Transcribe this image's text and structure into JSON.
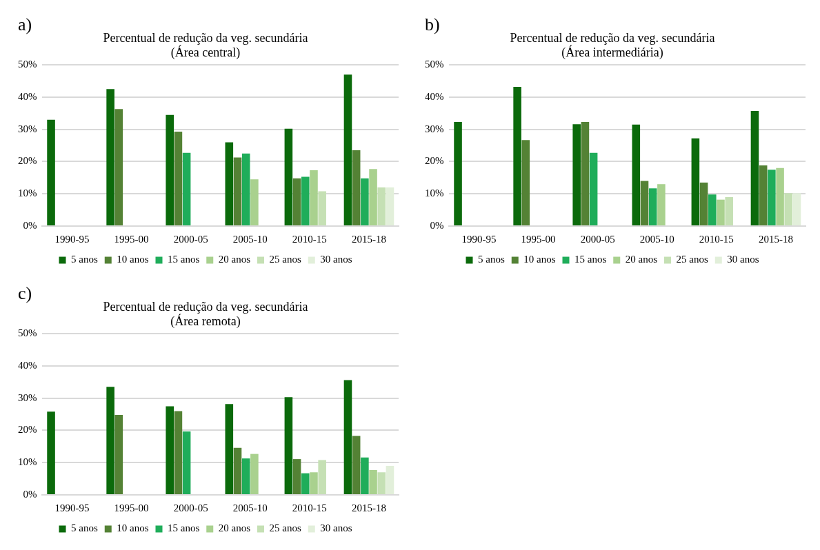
{
  "chart_data": [
    {
      "type": "bar",
      "title": "Percentual de redução da veg. secundária",
      "subtitle": "(Área central)",
      "annotations": [
        "a)"
      ],
      "categories": [
        "1990-95",
        "1995-00",
        "2000-05",
        "2005-10",
        "2010-15",
        "2015-18"
      ],
      "ylim": [
        0,
        50
      ],
      "yticks": [
        {
          "value": 0,
          "label": "0%"
        },
        {
          "value": 10,
          "label": "10%"
        },
        {
          "value": 20,
          "label": "20%"
        },
        {
          "value": 30,
          "label": "30%"
        },
        {
          "value": 40,
          "label": "40%"
        },
        {
          "value": 50,
          "label": "50%"
        }
      ],
      "grid": "y",
      "legend": "bottom",
      "series": [
        {
          "name": "5 anos",
          "color": "#0b6a0b",
          "values": [
            33,
            42.5,
            34.5,
            26,
            30.2,
            47
          ]
        },
        {
          "name": "10 anos",
          "color": "#548235",
          "values": [
            null,
            36.3,
            29.3,
            21.3,
            14.8,
            23.5
          ]
        },
        {
          "name": "15 anos",
          "color": "#1fad5a",
          "values": [
            null,
            null,
            22.7,
            22.5,
            15.3,
            14.8
          ]
        },
        {
          "name": "20 anos",
          "color": "#a9d18e",
          "values": [
            null,
            null,
            null,
            14.5,
            17.3,
            17.7
          ]
        },
        {
          "name": "25 anos",
          "color": "#c5e0b4",
          "values": [
            null,
            null,
            null,
            null,
            10.8,
            12
          ]
        },
        {
          "name": "30 anos",
          "color": "#e2efda",
          "values": [
            null,
            null,
            null,
            null,
            null,
            12
          ]
        }
      ]
    },
    {
      "type": "bar",
      "title": "Percentual de redução da veg. secundária",
      "subtitle": "(Área intermediária)",
      "annotations": [
        "b)"
      ],
      "categories": [
        "1990-95",
        "1995-00",
        "2000-05",
        "2005-10",
        "2010-15",
        "2015-18"
      ],
      "ylim": [
        0,
        50
      ],
      "yticks": [
        {
          "value": 0,
          "label": "0%"
        },
        {
          "value": 10,
          "label": "10%"
        },
        {
          "value": 20,
          "label": "20%"
        },
        {
          "value": 30,
          "label": "30%"
        },
        {
          "value": 40,
          "label": "40%"
        },
        {
          "value": 50,
          "label": "50%"
        }
      ],
      "grid": "y",
      "legend": "bottom",
      "series": [
        {
          "name": "5 anos",
          "color": "#0b6a0b",
          "values": [
            32.3,
            43.2,
            31.6,
            31.5,
            27.2,
            35.7
          ]
        },
        {
          "name": "10 anos",
          "color": "#548235",
          "values": [
            null,
            26.7,
            32.3,
            14,
            13.5,
            18.8
          ]
        },
        {
          "name": "15 anos",
          "color": "#1fad5a",
          "values": [
            null,
            null,
            22.7,
            11.7,
            9.8,
            17.5
          ]
        },
        {
          "name": "20 anos",
          "color": "#a9d18e",
          "values": [
            null,
            null,
            null,
            13,
            8.2,
            18
          ]
        },
        {
          "name": "25 anos",
          "color": "#c5e0b4",
          "values": [
            null,
            null,
            null,
            null,
            9,
            10.2
          ]
        },
        {
          "name": "30 anos",
          "color": "#e2efda",
          "values": [
            null,
            null,
            null,
            null,
            null,
            10.2
          ]
        }
      ]
    },
    {
      "type": "bar",
      "title": "Percentual de redução da veg. secundária",
      "subtitle": "(Área remota)",
      "annotations": [
        "c)"
      ],
      "categories": [
        "1990-95",
        "1995-00",
        "2000-05",
        "2005-10",
        "2010-15",
        "2015-18"
      ],
      "ylim": [
        0,
        50
      ],
      "yticks": [
        {
          "value": 0,
          "label": "0%"
        },
        {
          "value": 10,
          "label": "10%"
        },
        {
          "value": 20,
          "label": "20%"
        },
        {
          "value": 30,
          "label": "30%"
        },
        {
          "value": 40,
          "label": "40%"
        },
        {
          "value": 50,
          "label": "50%"
        }
      ],
      "grid": "y",
      "legend": "bottom",
      "series": [
        {
          "name": "5 anos",
          "color": "#0b6a0b",
          "values": [
            25.8,
            33.5,
            27.5,
            28.2,
            30.3,
            35.6
          ]
        },
        {
          "name": "10 anos",
          "color": "#548235",
          "values": [
            null,
            24.8,
            26,
            14.6,
            11.1,
            18.3
          ]
        },
        {
          "name": "15 anos",
          "color": "#1fad5a",
          "values": [
            null,
            null,
            19.7,
            11.3,
            6.7,
            11.6
          ]
        },
        {
          "name": "20 anos",
          "color": "#a9d18e",
          "values": [
            null,
            null,
            null,
            12.7,
            7,
            7.7
          ]
        },
        {
          "name": "25 anos",
          "color": "#c5e0b4",
          "values": [
            null,
            null,
            null,
            null,
            10.8,
            7
          ]
        },
        {
          "name": "30 anos",
          "color": "#e2efda",
          "values": [
            null,
            null,
            null,
            null,
            null,
            9
          ]
        }
      ]
    }
  ]
}
